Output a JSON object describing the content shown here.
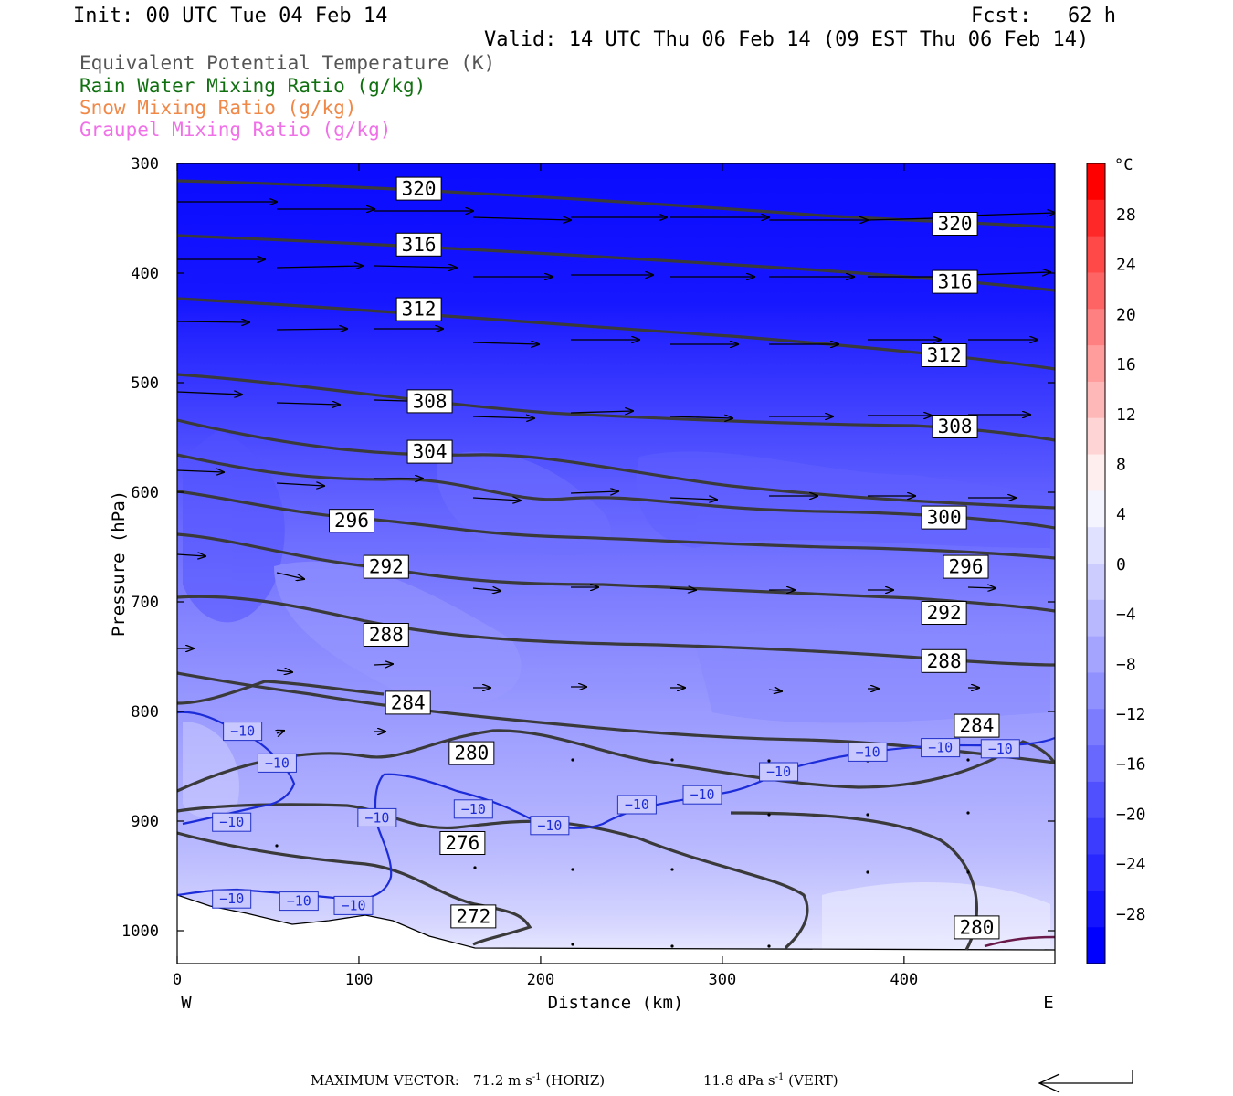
{
  "header": {
    "init": "Init: 00 UTC Tue 04 Feb 14",
    "fcst": "Fcst:   62 h",
    "valid": "Valid: 14 UTC Thu 06 Feb 14 (09 EST Thu 06 Feb 14)"
  },
  "legend": [
    {
      "label": "Equivalent Potential Temperature (K)",
      "color": "#555555"
    },
    {
      "label": "Rain Water Mixing Ratio (g/kg)",
      "color": "#107010"
    },
    {
      "label": "Snow Mixing Ratio (g/kg)",
      "color": "#f08848"
    },
    {
      "label": "Graupel Mixing Ratio (g/kg)",
      "color": "#f070e8"
    }
  ],
  "footer": {
    "max_vector_label": "MAXIMUM VECTOR:",
    "horiz_value": "71.2 m s",
    "horiz_sup": "-1",
    "horiz_unit": "(HORIZ)",
    "vert_value": "11.8 dPa s",
    "vert_sup": "-1",
    "vert_unit": "(VERT)"
  },
  "chart_data": {
    "type": "cross-section",
    "xlabel": "Distance (km)",
    "ylabel": "Pressure (hPa)",
    "x_ticks": [
      0,
      100,
      200,
      300,
      400
    ],
    "xlim": [
      0,
      483
    ],
    "y_ticks": [
      300,
      400,
      500,
      600,
      700,
      800,
      900,
      1000
    ],
    "ylim": [
      1030,
      300
    ],
    "x_end_labels": {
      "left": "W",
      "right": "E"
    },
    "colorbar": {
      "unit": "°C",
      "labels": [
        "28",
        "24",
        "20",
        "16",
        "12",
        "8",
        "4",
        "0",
        "−4",
        "−8",
        "−12",
        "−16",
        "−20",
        "−24",
        "−28"
      ],
      "colors": [
        "#ff0000",
        "#ff2828",
        "#ff4848",
        "#ff6464",
        "#ff8080",
        "#ff9c9c",
        "#ffb8b8",
        "#ffd4d4",
        "#ffeeee",
        "#f4f4ff",
        "#e0e0ff",
        "#ccccff",
        "#b8b8ff",
        "#a4a4ff",
        "#9090ff",
        "#7c7cff",
        "#6868ff",
        "#5050ff",
        "#3c3cff",
        "#2828ff",
        "#1414ff",
        "#0000ff"
      ]
    },
    "theta_e_labels": [
      {
        "text": "320",
        "x": 133,
        "p": 323
      },
      {
        "text": "316",
        "x": 133,
        "p": 374
      },
      {
        "text": "312",
        "x": 133,
        "p": 433
      },
      {
        "text": "308",
        "x": 139,
        "p": 517
      },
      {
        "text": "304",
        "x": 139,
        "p": 563
      },
      {
        "text": "296",
        "x": 96,
        "p": 626
      },
      {
        "text": "292",
        "x": 115,
        "p": 668
      },
      {
        "text": "288",
        "x": 115,
        "p": 730
      },
      {
        "text": "284",
        "x": 127,
        "p": 792
      },
      {
        "text": "280",
        "x": 162,
        "p": 838
      },
      {
        "text": "276",
        "x": 157,
        "p": 920
      },
      {
        "text": "272",
        "x": 163,
        "p": 987
      },
      {
        "text": "320",
        "x": 428,
        "p": 355
      },
      {
        "text": "316",
        "x": 428,
        "p": 408
      },
      {
        "text": "312",
        "x": 422,
        "p": 475
      },
      {
        "text": "308",
        "x": 428,
        "p": 540
      },
      {
        "text": "300",
        "x": 422,
        "p": 623
      },
      {
        "text": "296",
        "x": 434,
        "p": 668
      },
      {
        "text": "292",
        "x": 422,
        "p": 710
      },
      {
        "text": "288",
        "x": 422,
        "p": 754
      },
      {
        "text": "284",
        "x": 440,
        "p": 813
      },
      {
        "text": "280",
        "x": 440,
        "p": 997
      }
    ],
    "isotherm_labels": [
      {
        "text": "−10",
        "x": 36,
        "p": 818
      },
      {
        "text": "−10",
        "x": 55,
        "p": 847
      },
      {
        "text": "−10",
        "x": 30,
        "p": 901
      },
      {
        "text": "−10",
        "x": 110,
        "p": 897
      },
      {
        "text": "−10",
        "x": 163,
        "p": 889
      },
      {
        "text": "−10",
        "x": 205,
        "p": 904
      },
      {
        "text": "−10",
        "x": 253,
        "p": 885
      },
      {
        "text": "−10",
        "x": 289,
        "p": 876
      },
      {
        "text": "−10",
        "x": 331,
        "p": 855
      },
      {
        "text": "−10",
        "x": 380,
        "p": 837
      },
      {
        "text": "−10",
        "x": 420,
        "p": 833
      },
      {
        "text": "−10",
        "x": 453,
        "p": 834
      },
      {
        "text": "−10",
        "x": 30,
        "p": 971
      },
      {
        "text": "−10",
        "x": 67,
        "p": 973
      },
      {
        "text": "−10",
        "x": 97,
        "p": 977
      }
    ]
  }
}
